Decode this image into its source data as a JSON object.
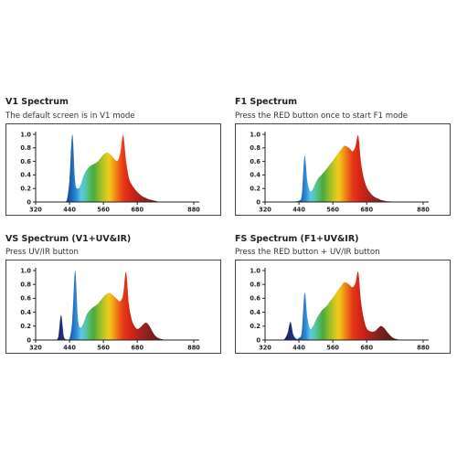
{
  "chart_data": [
    {
      "type": "area",
      "title": "V1 Spectrum",
      "subtitle": "The default screen is in V1 mode",
      "xlim": [
        320,
        880
      ],
      "ylim": [
        0,
        1.0
      ],
      "xticks": [
        "320",
        "440",
        "560",
        "680",
        "880"
      ],
      "yticks": [
        "0",
        "0.2",
        "0.4",
        "0.6",
        "0.8",
        "1.0"
      ],
      "x": [
        370,
        380,
        390,
        400,
        410,
        420,
        430,
        440,
        450,
        460,
        470,
        480,
        490,
        500,
        510,
        520,
        530,
        540,
        550,
        560,
        570,
        580,
        590,
        600,
        610,
        620,
        630,
        640,
        650,
        660,
        670,
        680,
        690,
        700,
        710,
        720,
        730,
        740,
        750,
        760,
        770,
        780,
        790,
        800,
        810,
        820,
        830,
        840,
        850
      ],
      "values": [
        0,
        0,
        0,
        0,
        0,
        0,
        0.02,
        0.33,
        1.0,
        0.3,
        0.2,
        0.26,
        0.39,
        0.47,
        0.52,
        0.55,
        0.57,
        0.6,
        0.65,
        0.7,
        0.73,
        0.72,
        0.68,
        0.63,
        0.61,
        0.73,
        0.99,
        0.62,
        0.36,
        0.26,
        0.2,
        0.15,
        0.11,
        0.08,
        0.06,
        0.04,
        0.03,
        0.02,
        0.01,
        0,
        0,
        0,
        0,
        0,
        0,
        0,
        0,
        0,
        0
      ]
    },
    {
      "type": "area",
      "title": "F1 Spectrum",
      "subtitle": "Press the RED button once to start F1 mode",
      "xlim": [
        320,
        880
      ],
      "ylim": [
        0,
        1.0
      ],
      "xticks": [
        "320",
        "440",
        "560",
        "680",
        "880"
      ],
      "yticks": [
        "0",
        "0.2",
        "0.4",
        "0.6",
        "0.8",
        "1.0"
      ],
      "x": [
        370,
        380,
        390,
        400,
        410,
        420,
        430,
        440,
        450,
        460,
        470,
        480,
        490,
        500,
        510,
        520,
        530,
        540,
        550,
        560,
        570,
        580,
        590,
        600,
        610,
        620,
        630,
        640,
        650,
        660,
        670,
        680,
        690,
        700,
        710,
        720,
        730,
        740,
        750,
        760,
        770,
        780,
        790,
        800,
        810,
        820,
        830,
        840,
        850
      ],
      "values": [
        0,
        0,
        0,
        0,
        0,
        0,
        0.01,
        0.02,
        0.1,
        0.68,
        0.3,
        0.16,
        0.2,
        0.29,
        0.36,
        0.4,
        0.45,
        0.5,
        0.56,
        0.61,
        0.67,
        0.73,
        0.78,
        0.83,
        0.82,
        0.79,
        0.75,
        0.82,
        0.98,
        0.58,
        0.35,
        0.22,
        0.15,
        0.1,
        0.07,
        0.05,
        0.03,
        0.02,
        0.01,
        0.01,
        0,
        0,
        0,
        0,
        0,
        0,
        0,
        0,
        0
      ]
    },
    {
      "type": "area",
      "title": "VS Spectrum (V1+UV&IR)",
      "subtitle": "Press UV/IR button",
      "xlim": [
        320,
        880
      ],
      "ylim": [
        0,
        1.0
      ],
      "xticks": [
        "320",
        "440",
        "560",
        "680",
        "880"
      ],
      "yticks": [
        "0",
        "0.2",
        "0.4",
        "0.6",
        "0.8",
        "1.0"
      ],
      "x": [
        340,
        350,
        360,
        370,
        380,
        390,
        400,
        410,
        420,
        430,
        440,
        450,
        460,
        470,
        480,
        490,
        500,
        510,
        520,
        530,
        540,
        550,
        560,
        570,
        580,
        590,
        600,
        610,
        620,
        630,
        640,
        650,
        660,
        670,
        680,
        690,
        700,
        710,
        720,
        730,
        740,
        750,
        760,
        770,
        780,
        790,
        800,
        810,
        820,
        830,
        840,
        850
      ],
      "values": [
        0,
        0,
        0,
        0,
        0,
        0,
        0.04,
        0.36,
        0.05,
        0.01,
        0.02,
        0.3,
        1.0,
        0.3,
        0.18,
        0.25,
        0.36,
        0.42,
        0.46,
        0.49,
        0.52,
        0.57,
        0.62,
        0.66,
        0.68,
        0.66,
        0.62,
        0.58,
        0.56,
        0.66,
        0.98,
        0.52,
        0.3,
        0.2,
        0.16,
        0.18,
        0.22,
        0.25,
        0.22,
        0.15,
        0.08,
        0.04,
        0.02,
        0.01,
        0,
        0,
        0,
        0,
        0,
        0,
        0,
        0
      ]
    },
    {
      "type": "area",
      "title": "FS Spectrum (F1+UV&IR)",
      "subtitle": "Press the RED button + UV/IR button",
      "xlim": [
        320,
        880
      ],
      "ylim": [
        0,
        1.0
      ],
      "xticks": [
        "320",
        "440",
        "560",
        "680",
        "880"
      ],
      "yticks": [
        "0",
        "0.2",
        "0.4",
        "0.6",
        "0.8",
        "1.0"
      ],
      "x": [
        340,
        350,
        360,
        370,
        380,
        390,
        400,
        410,
        420,
        430,
        440,
        450,
        460,
        470,
        480,
        490,
        500,
        510,
        520,
        530,
        540,
        550,
        560,
        570,
        580,
        590,
        600,
        610,
        620,
        630,
        640,
        650,
        660,
        670,
        680,
        690,
        700,
        710,
        720,
        730,
        740,
        750,
        760,
        770,
        780,
        790,
        800,
        810,
        820,
        830,
        840,
        850
      ],
      "values": [
        0,
        0,
        0,
        0,
        0,
        0.02,
        0.1,
        0.26,
        0.08,
        0.02,
        0.03,
        0.12,
        0.68,
        0.32,
        0.16,
        0.2,
        0.29,
        0.36,
        0.42,
        0.46,
        0.5,
        0.56,
        0.61,
        0.67,
        0.73,
        0.78,
        0.83,
        0.82,
        0.79,
        0.76,
        0.82,
        0.98,
        0.55,
        0.3,
        0.17,
        0.13,
        0.12,
        0.13,
        0.17,
        0.2,
        0.18,
        0.13,
        0.08,
        0.04,
        0.02,
        0.01,
        0,
        0,
        0,
        0,
        0,
        0
      ]
    }
  ]
}
